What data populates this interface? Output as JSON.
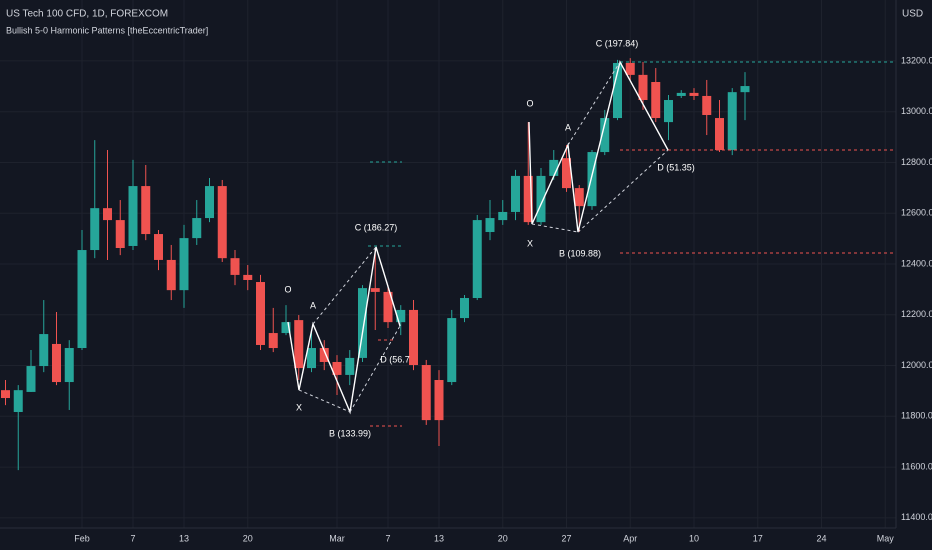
{
  "chart_data": {
    "type": "candlestick",
    "title": "US Tech 100 CFD, 1D, FOREXCOM",
    "subtitle": "Bullish 5-0 Harmonic Patterns [theEccentricTrader]",
    "y_axis_label": "USD",
    "categories": [
      null,
      null,
      null,
      null,
      null,
      null,
      "Feb",
      null,
      null,
      null,
      "7",
      null,
      null,
      null,
      "13",
      null,
      null,
      null,
      null,
      "20",
      null,
      null,
      null,
      null,
      null,
      null,
      "Mar",
      null,
      null,
      null,
      "7",
      null,
      null,
      null,
      "13",
      null,
      null,
      null,
      null,
      "20",
      null,
      null,
      null,
      null,
      "27",
      null,
      null,
      null,
      null,
      "Apr",
      null,
      null,
      null,
      null,
      "10",
      null,
      null,
      null,
      null,
      "17",
      null,
      null,
      null,
      null,
      "24",
      null,
      null,
      null,
      null,
      "May"
    ],
    "open": [
      11903,
      11817,
      11896,
      11998,
      12085,
      11935,
      12069,
      12455,
      12620,
      12573,
      12471,
      12707,
      12518,
      12416,
      12297,
      12502,
      12581,
      12707,
      12423,
      12357,
      12329,
      12128,
      12128,
      12179,
      11990,
      12069,
      12014,
      11963,
      12030,
      12305,
      12290,
      12171,
      12219,
      12002,
      11943,
      11935,
      12187,
      12266,
      12526,
      12573,
      12605,
      12747,
      12565,
      12747,
      12817,
      12699,
      12628,
      12841,
      12975,
      13192,
      13145,
      13117,
      12959,
      13062,
      13074,
      13062,
      12975,
      12849,
      13077,
      null,
      null,
      null,
      null,
      null,
      null,
      null,
      null,
      null,
      null,
      null
    ],
    "high": [
      11943,
      11923,
      12061,
      12258,
      12211,
      12100,
      12534,
      12888,
      12849,
      12652,
      12810,
      12790,
      12534,
      12475,
      12554,
      12652,
      12739,
      12731,
      12455,
      12396,
      12357,
      12227,
      12238,
      12199,
      12140,
      12100,
      12041,
      12061,
      12317,
      12455,
      12317,
      12238,
      12258,
      12022,
      11982,
      12219,
      12278,
      12593,
      12652,
      12652,
      12771,
      12959,
      12778,
      12849,
      12869,
      12711,
      12849,
      13007,
      13204,
      13211,
      13196,
      13172,
      13066,
      13085,
      13093,
      13125,
      13046,
      13093,
      13156,
      null,
      null,
      null,
      null,
      null,
      null,
      null,
      null,
      null,
      null,
      null
    ],
    "low": [
      11844,
      11588,
      11896,
      11974,
      11923,
      11825,
      12061,
      12423,
      12416,
      12435,
      12455,
      12494,
      12376,
      12258,
      12227,
      12475,
      12565,
      12408,
      12317,
      12297,
      12061,
      12053,
      12120,
      11943,
      11974,
      11982,
      11884,
      11923,
      12014,
      12140,
      12148,
      12120,
      11982,
      11766,
      11683,
      11923,
      12171,
      12258,
      12494,
      12554,
      12573,
      12554,
      12554,
      12731,
      12684,
      12526,
      12613,
      12829,
      12967,
      13125,
      13007,
      12959,
      12888,
      13054,
      13046,
      12908,
      12841,
      12829,
      12967,
      null,
      null,
      null,
      null,
      null,
      null,
      null,
      null,
      null,
      null,
      null
    ],
    "close": [
      11872,
      11903,
      11998,
      12124,
      11935,
      12069,
      12455,
      12620,
      12573,
      12463,
      12707,
      12518,
      12416,
      12297,
      12502,
      12581,
      12707,
      12423,
      12357,
      12337,
      12081,
      12069,
      12171,
      11990,
      12069,
      12014,
      11963,
      12030,
      12305,
      12290,
      12171,
      12219,
      12002,
      11785,
      11785,
      12187,
      12266,
      12573,
      12581,
      12605,
      12747,
      12565,
      12747,
      12810,
      12699,
      12628,
      12841,
      12975,
      13192,
      13145,
      13046,
      12975,
      13046,
      13074,
      13062,
      12987,
      12849,
      13077,
      13101,
      null,
      null,
      null,
      null,
      null,
      null,
      null,
      null,
      null,
      null,
      null
    ],
    "ylim": [
      11360,
      13440
    ],
    "yticks": [
      {
        "value": 11400,
        "label": "11400.0"
      },
      {
        "value": 11600,
        "label": "11600.0"
      },
      {
        "value": 11800,
        "label": "11800.0"
      },
      {
        "value": 12000,
        "label": "12000.0"
      },
      {
        "value": 12200,
        "label": "12200.0"
      },
      {
        "value": 12400,
        "label": "12400.0"
      },
      {
        "value": 12600,
        "label": "12600.0"
      },
      {
        "value": 12800,
        "label": "12800.0"
      },
      {
        "value": 13000,
        "label": "13000.0"
      },
      {
        "value": 13200,
        "label": "13200.0"
      }
    ],
    "up_color": "#26a69a",
    "down_color": "#ef5350",
    "grid": true,
    "annotations": [
      "O",
      "A",
      "X",
      "B (133.99)",
      "C (186.27)",
      "D (56.7",
      "O",
      "A",
      "X",
      "B (109.88)",
      "C (197.84)",
      "D (51.35)"
    ]
  }
}
